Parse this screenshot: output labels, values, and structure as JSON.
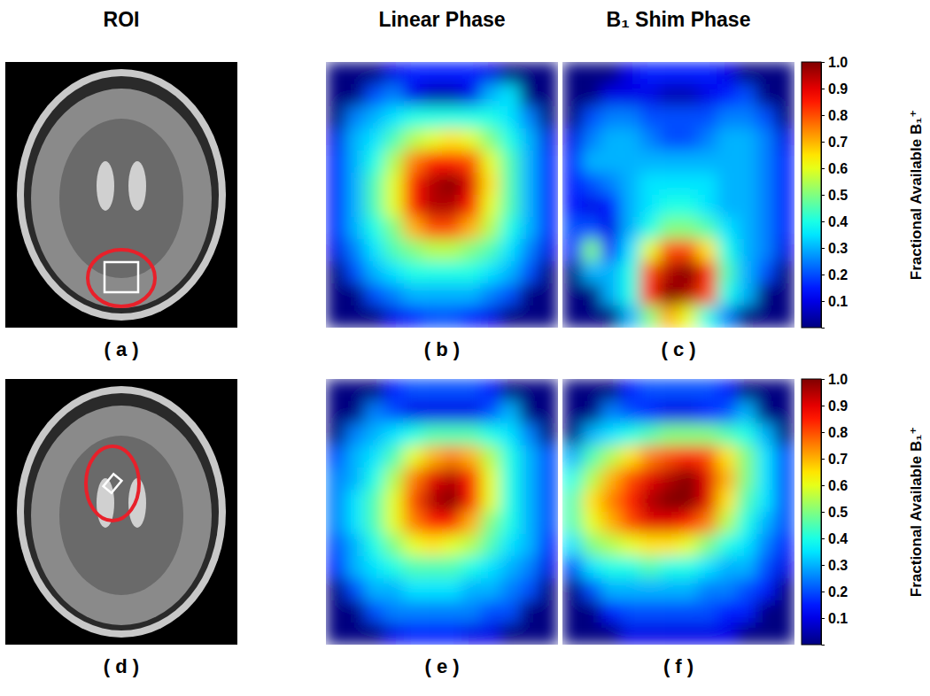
{
  "column_titles": [
    "ROI",
    "Linear Phase",
    "B₁ Shim Phase"
  ],
  "images": [
    {
      "title": "( a )"
    },
    {
      "title": "( d )"
    }
  ],
  "colorbars": [
    {
      "range": [
        0,
        1
      ],
      "ticks": [
        0.1,
        0.2,
        0.3,
        0.4,
        0.5,
        0.6,
        0.7,
        0.8,
        0.9,
        {
          "value": 1,
          "label": "1.0"
        }
      ],
      "label": "Fractional Available B₁⁺"
    },
    {
      "range": [
        0,
        1
      ],
      "ticks": [
        0.1,
        0.2,
        0.3,
        0.4,
        0.5,
        0.6,
        0.7,
        0.8,
        0.9,
        {
          "value": 1,
          "label": "1.0"
        }
      ],
      "label": "Fractional Available B₁⁺"
    }
  ],
  "chart_data": [
    {
      "type": "heatmap",
      "title": "( b )",
      "cells": [
        [
          0,
          0,
          0,
          0.1,
          0.15,
          0.15,
          0.15,
          0.15,
          0.1,
          0,
          0,
          0
        ],
        [
          0,
          0,
          0.2,
          0.25,
          0.1,
          0.05,
          0.05,
          0.1,
          0.3,
          0.35,
          0,
          0
        ],
        [
          0,
          0.25,
          0.3,
          0.35,
          0.4,
          0.4,
          0.4,
          0.4,
          0.4,
          0.35,
          0.25,
          0
        ],
        [
          0.1,
          0.3,
          0.35,
          0.45,
          0.55,
          0.6,
          0.65,
          0.6,
          0.5,
          0.4,
          0.3,
          0.1
        ],
        [
          0.15,
          0.3,
          0.4,
          0.55,
          0.75,
          0.85,
          0.85,
          0.8,
          0.6,
          0.45,
          0.3,
          0.15
        ],
        [
          0.15,
          0.3,
          0.45,
          0.6,
          0.85,
          0.95,
          1.0,
          0.9,
          0.65,
          0.45,
          0.3,
          0.15
        ],
        [
          0.15,
          0.3,
          0.45,
          0.6,
          0.85,
          0.95,
          0.95,
          0.85,
          0.6,
          0.45,
          0.3,
          0.15
        ],
        [
          0.15,
          0.3,
          0.4,
          0.5,
          0.7,
          0.8,
          0.8,
          0.7,
          0.55,
          0.4,
          0.3,
          0.15
        ],
        [
          0.1,
          0.25,
          0.35,
          0.45,
          0.5,
          0.55,
          0.55,
          0.5,
          0.45,
          0.35,
          0.25,
          0.1
        ],
        [
          0,
          0.2,
          0.3,
          0.35,
          0.4,
          0.4,
          0.4,
          0.4,
          0.35,
          0.3,
          0.2,
          0
        ],
        [
          0,
          0,
          0.2,
          0.25,
          0.3,
          0.3,
          0.3,
          0.3,
          0.25,
          0.2,
          0,
          0
        ],
        [
          0,
          0,
          0,
          0.1,
          0.15,
          0.2,
          0.2,
          0.15,
          0.1,
          0,
          0,
          0
        ]
      ]
    },
    {
      "type": "heatmap",
      "title": "( c )",
      "cells": [
        [
          0,
          0,
          0,
          0.1,
          0.15,
          0.15,
          0.15,
          0.15,
          0.1,
          0,
          0,
          0
        ],
        [
          0,
          0,
          0.1,
          0.1,
          0.1,
          0.05,
          0.05,
          0.1,
          0.15,
          0.2,
          0,
          0
        ],
        [
          0,
          0.2,
          0.25,
          0.25,
          0.2,
          0.2,
          0.2,
          0.2,
          0.25,
          0.25,
          0.2,
          0
        ],
        [
          0.1,
          0.25,
          0.3,
          0.3,
          0.25,
          0.2,
          0.2,
          0.25,
          0.3,
          0.3,
          0.25,
          0.1
        ],
        [
          0.15,
          0.3,
          0.3,
          0.3,
          0.3,
          0.3,
          0.3,
          0.3,
          0.3,
          0.3,
          0.25,
          0.15
        ],
        [
          0.15,
          0.2,
          0.25,
          0.3,
          0.35,
          0.35,
          0.35,
          0.35,
          0.3,
          0.3,
          0.25,
          0.15
        ],
        [
          0.15,
          0.1,
          0.15,
          0.3,
          0.35,
          0.4,
          0.4,
          0.35,
          0.3,
          0.3,
          0.25,
          0.15
        ],
        [
          0.2,
          0.2,
          0.1,
          0.3,
          0.4,
          0.5,
          0.5,
          0.45,
          0.35,
          0.3,
          0.25,
          0.15
        ],
        [
          0.15,
          0.5,
          0.15,
          0.35,
          0.6,
          0.8,
          0.8,
          0.65,
          0.4,
          0.3,
          0.25,
          0.1
        ],
        [
          0,
          0.3,
          0.3,
          0.4,
          0.8,
          0.95,
          1.0,
          0.85,
          0.45,
          0.3,
          0.2,
          0
        ],
        [
          0,
          0,
          0.3,
          0.4,
          0.85,
          1.0,
          0.95,
          0.8,
          0.4,
          0.3,
          0,
          0
        ],
        [
          0,
          0,
          0,
          0.3,
          0.5,
          0.7,
          0.6,
          0.4,
          0.25,
          0,
          0,
          0
        ]
      ]
    },
    {
      "type": "heatmap",
      "title": "( e )",
      "cells": [
        [
          0,
          0,
          0,
          0.15,
          0.2,
          0.2,
          0.2,
          0.2,
          0.15,
          0,
          0,
          0
        ],
        [
          0,
          0,
          0.25,
          0.2,
          0.1,
          0.1,
          0.1,
          0.1,
          0.2,
          0.3,
          0,
          0
        ],
        [
          0,
          0.25,
          0.3,
          0.35,
          0.4,
          0.45,
          0.45,
          0.45,
          0.4,
          0.35,
          0.25,
          0
        ],
        [
          0.2,
          0.3,
          0.35,
          0.45,
          0.6,
          0.7,
          0.75,
          0.7,
          0.55,
          0.4,
          0.3,
          0.2
        ],
        [
          0.25,
          0.3,
          0.4,
          0.55,
          0.75,
          0.9,
          0.95,
          0.85,
          0.6,
          0.4,
          0.3,
          0.2
        ],
        [
          0.25,
          0.35,
          0.45,
          0.6,
          0.8,
          0.95,
          1.0,
          0.85,
          0.6,
          0.4,
          0.3,
          0.2
        ],
        [
          0.25,
          0.35,
          0.45,
          0.6,
          0.75,
          0.85,
          0.85,
          0.7,
          0.5,
          0.4,
          0.3,
          0.2
        ],
        [
          0.2,
          0.3,
          0.4,
          0.5,
          0.6,
          0.65,
          0.6,
          0.55,
          0.45,
          0.35,
          0.3,
          0.15
        ],
        [
          0.15,
          0.3,
          0.35,
          0.4,
          0.45,
          0.45,
          0.45,
          0.4,
          0.35,
          0.3,
          0.25,
          0.1
        ],
        [
          0,
          0.2,
          0.3,
          0.3,
          0.35,
          0.35,
          0.35,
          0.3,
          0.3,
          0.25,
          0.2,
          0
        ],
        [
          0,
          0,
          0.2,
          0.25,
          0.25,
          0.25,
          0.25,
          0.25,
          0.2,
          0.2,
          0,
          0
        ],
        [
          0,
          0,
          0,
          0.1,
          0.15,
          0.15,
          0.15,
          0.1,
          0.1,
          0,
          0,
          0
        ]
      ]
    },
    {
      "type": "heatmap",
      "title": "( f )",
      "cells": [
        [
          0,
          0,
          0,
          0.15,
          0.2,
          0.2,
          0.2,
          0.2,
          0.15,
          0,
          0,
          0
        ],
        [
          0,
          0,
          0.25,
          0.2,
          0.15,
          0.1,
          0.1,
          0.15,
          0.2,
          0.3,
          0,
          0
        ],
        [
          0,
          0.3,
          0.35,
          0.4,
          0.45,
          0.5,
          0.5,
          0.5,
          0.45,
          0.4,
          0.3,
          0
        ],
        [
          0.3,
          0.45,
          0.55,
          0.65,
          0.75,
          0.8,
          0.85,
          0.8,
          0.65,
          0.5,
          0.35,
          0.2
        ],
        [
          0.4,
          0.55,
          0.7,
          0.8,
          0.9,
          0.95,
          1.0,
          0.9,
          0.7,
          0.5,
          0.35,
          0.2
        ],
        [
          0.45,
          0.65,
          0.75,
          0.85,
          0.95,
          1.0,
          1.0,
          0.9,
          0.65,
          0.45,
          0.35,
          0.2
        ],
        [
          0.45,
          0.6,
          0.7,
          0.8,
          0.9,
          0.9,
          0.85,
          0.75,
          0.55,
          0.4,
          0.3,
          0.2
        ],
        [
          0.35,
          0.5,
          0.55,
          0.6,
          0.65,
          0.65,
          0.6,
          0.5,
          0.4,
          0.35,
          0.25,
          0.15
        ],
        [
          0.2,
          0.35,
          0.4,
          0.4,
          0.45,
          0.4,
          0.4,
          0.35,
          0.3,
          0.3,
          0.2,
          0.1
        ],
        [
          0,
          0.2,
          0.3,
          0.3,
          0.3,
          0.3,
          0.3,
          0.25,
          0.25,
          0.2,
          0.15,
          0
        ],
        [
          0,
          0,
          0.15,
          0.2,
          0.2,
          0.2,
          0.2,
          0.2,
          0.15,
          0.15,
          0,
          0
        ],
        [
          0,
          0,
          0,
          0.1,
          0.1,
          0.1,
          0.1,
          0.1,
          0.1,
          0,
          0,
          0
        ]
      ]
    }
  ]
}
